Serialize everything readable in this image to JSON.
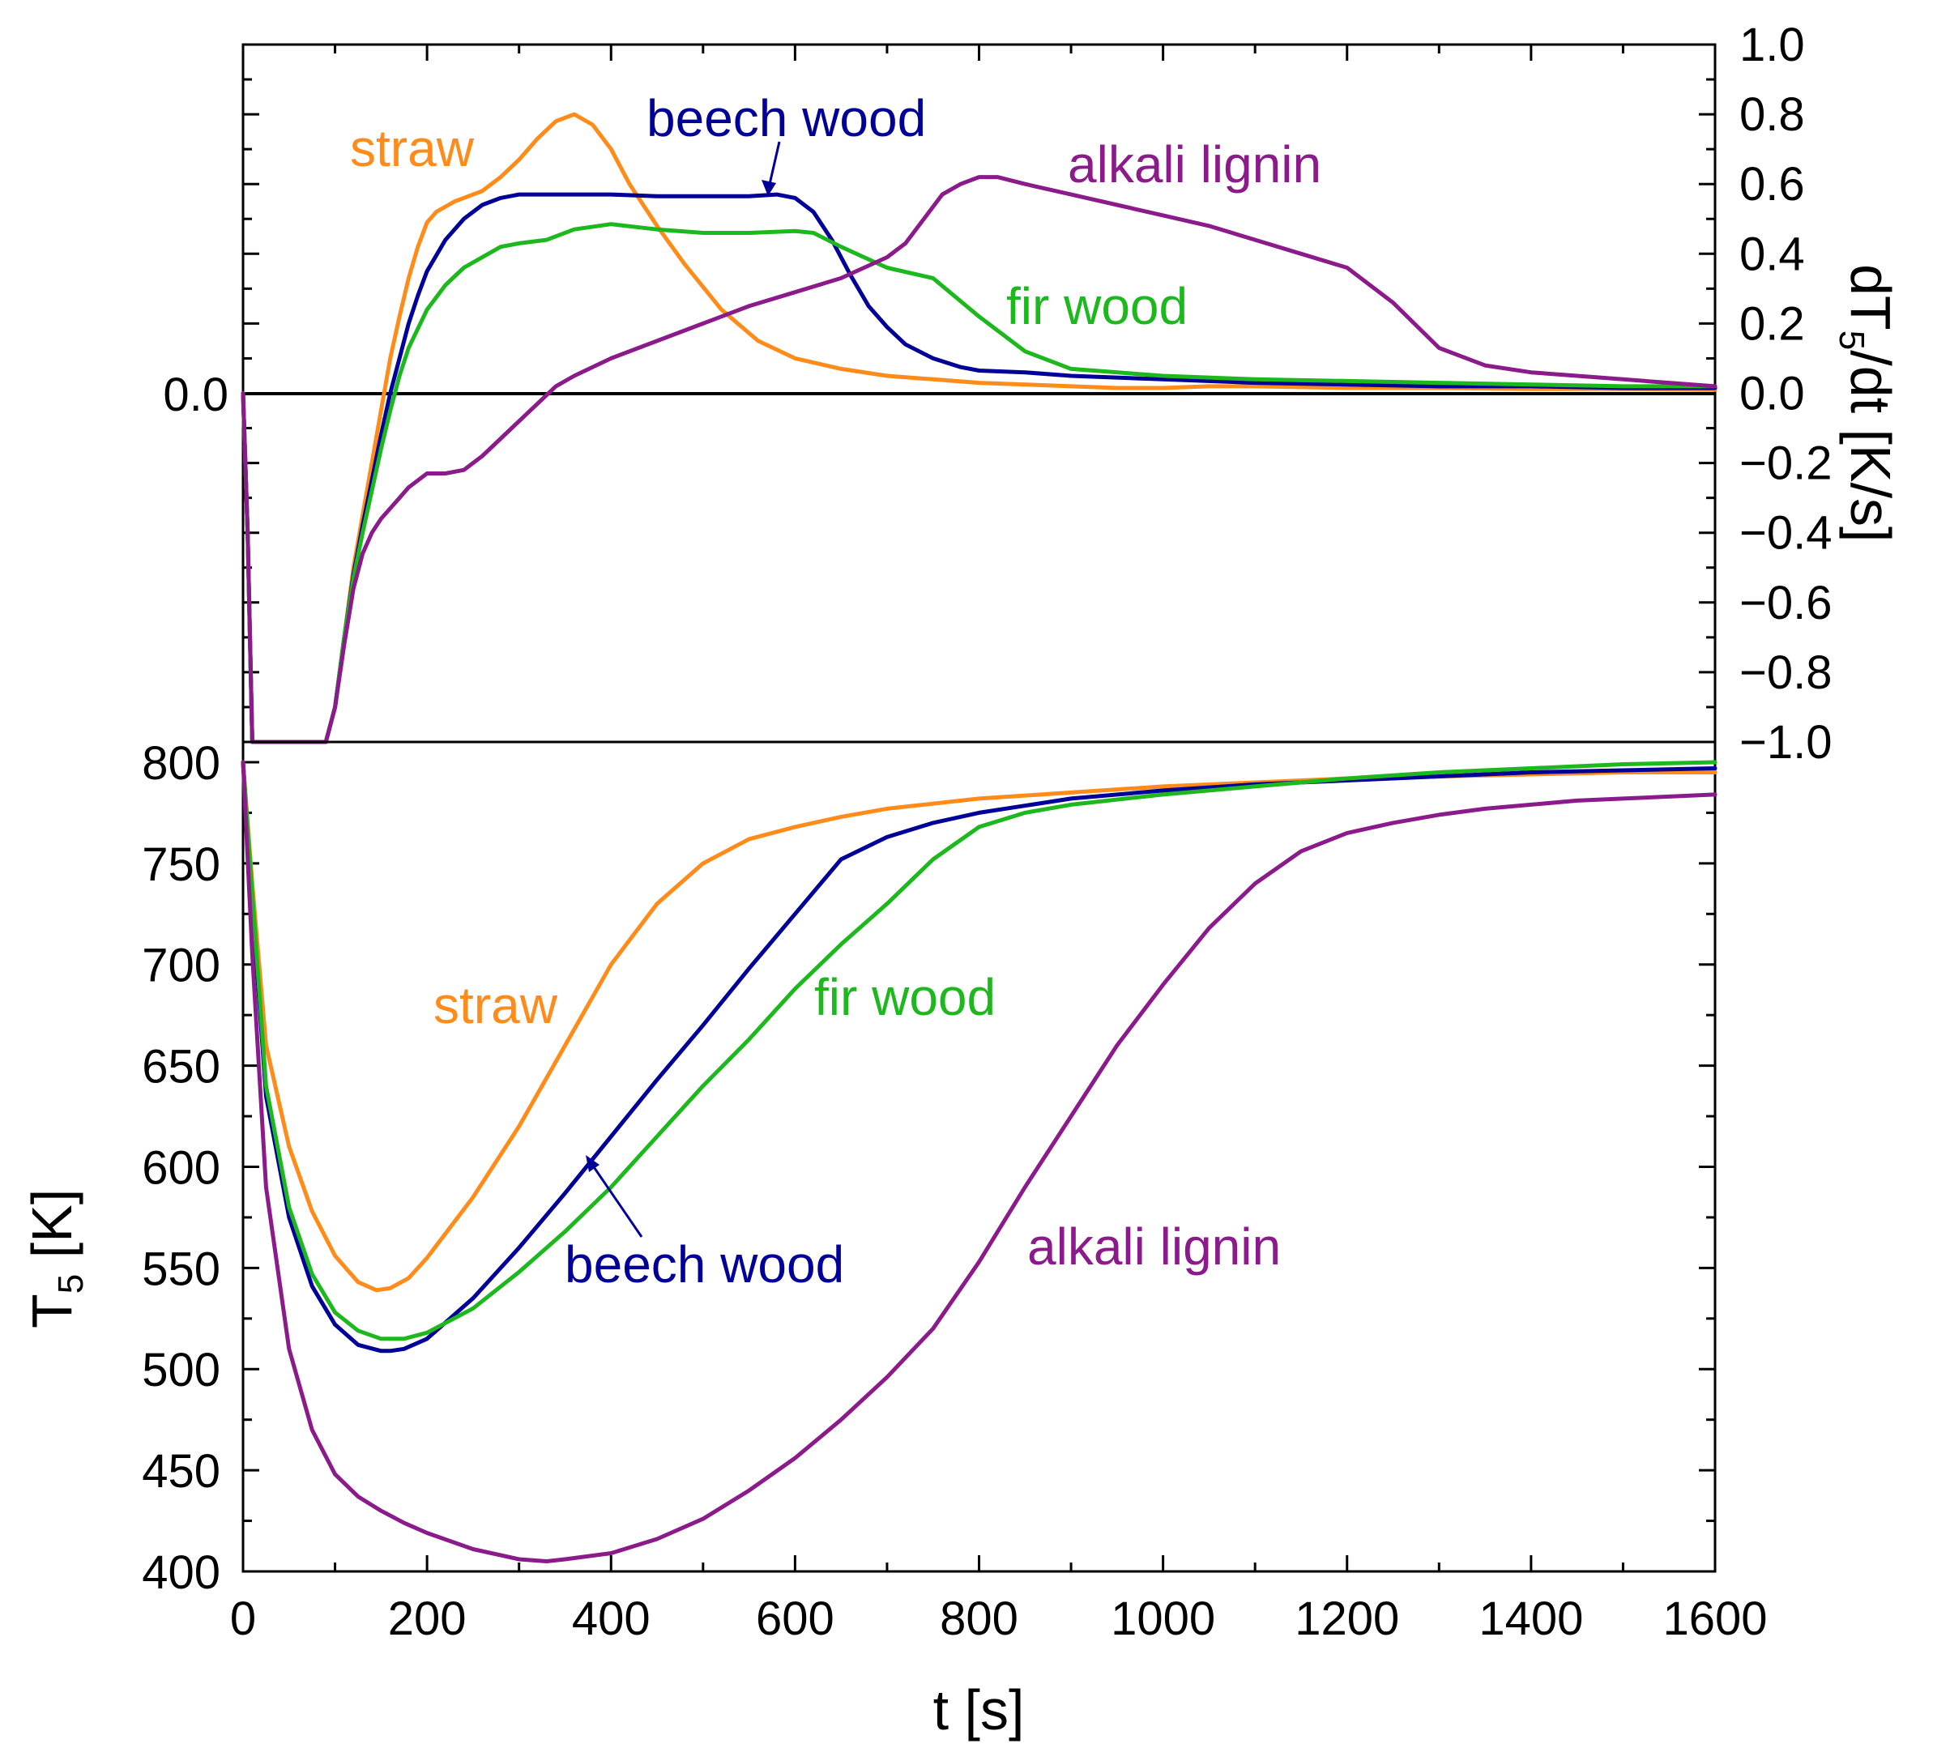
{
  "colors": {
    "straw": "#ff8c1a",
    "beech": "#000099",
    "fir": "#1db81d",
    "lignin": "#8b1a8b"
  },
  "chart_data": [
    {
      "type": "line",
      "panel": "top",
      "ylabel": "dT5/dt [K/s]",
      "ylabel_main": "dT",
      "ylabel_sub": "5",
      "ylabel_rest": "/dt [K/s]",
      "ylim": [
        -1.0,
        1.0
      ],
      "xlim": [
        0,
        1600
      ],
      "left_tick_label": "0.0",
      "right_tick_labels": [
        "1.0",
        "0.8",
        "0.6",
        "0.4",
        "0.2",
        "0.0",
        "−0.2",
        "−0.4",
        "−0.6",
        "−0.8",
        "−1.0"
      ],
      "annotations": {
        "straw": "straw",
        "beech": "beech wood",
        "fir": "fir wood",
        "lignin": "alkali lignin"
      },
      "series": [
        {
          "name": "straw",
          "color_key": "straw",
          "x": [
            0,
            5,
            10,
            50,
            90,
            100,
            110,
            120,
            130,
            140,
            150,
            160,
            170,
            180,
            190,
            200,
            210,
            230,
            260,
            280,
            300,
            320,
            340,
            360,
            380,
            400,
            420,
            450,
            480,
            520,
            560,
            600,
            650,
            700,
            750,
            800,
            850,
            900,
            950,
            1000,
            1050,
            1100,
            1200,
            1300,
            1400,
            1500,
            1600
          ],
          "y": [
            0.0,
            -0.4,
            -1.0,
            -1.0,
            -1.0,
            -0.9,
            -0.7,
            -0.5,
            -0.35,
            -0.2,
            -0.05,
            0.1,
            0.22,
            0.33,
            0.42,
            0.49,
            0.52,
            0.55,
            0.58,
            0.62,
            0.67,
            0.73,
            0.78,
            0.8,
            0.77,
            0.7,
            0.6,
            0.48,
            0.37,
            0.24,
            0.15,
            0.1,
            0.07,
            0.05,
            0.04,
            0.03,
            0.025,
            0.02,
            0.015,
            0.015,
            0.02,
            0.02,
            0.015,
            0.015,
            0.012,
            0.012,
            0.01
          ]
        },
        {
          "name": "beech wood",
          "color_key": "beech",
          "x": [
            0,
            5,
            10,
            50,
            90,
            100,
            110,
            120,
            130,
            140,
            150,
            160,
            170,
            180,
            190,
            200,
            220,
            240,
            260,
            280,
            300,
            350,
            400,
            450,
            500,
            550,
            580,
            600,
            620,
            640,
            660,
            680,
            700,
            720,
            750,
            780,
            800,
            850,
            900,
            1000,
            1100,
            1200,
            1300,
            1400,
            1500,
            1600
          ],
          "y": [
            0.0,
            -0.4,
            -1.0,
            -1.0,
            -1.0,
            -0.9,
            -0.7,
            -0.52,
            -0.38,
            -0.25,
            -0.12,
            0.0,
            0.1,
            0.2,
            0.28,
            0.35,
            0.44,
            0.5,
            0.54,
            0.56,
            0.57,
            0.57,
            0.57,
            0.565,
            0.565,
            0.565,
            0.57,
            0.56,
            0.52,
            0.44,
            0.34,
            0.25,
            0.19,
            0.14,
            0.1,
            0.075,
            0.065,
            0.06,
            0.05,
            0.04,
            0.03,
            0.025,
            0.02,
            0.02,
            0.015,
            0.015
          ]
        },
        {
          "name": "fir wood",
          "color_key": "fir",
          "x": [
            0,
            5,
            10,
            50,
            90,
            100,
            110,
            120,
            130,
            140,
            150,
            160,
            170,
            180,
            200,
            220,
            240,
            260,
            280,
            300,
            330,
            360,
            400,
            450,
            500,
            550,
            600,
            620,
            650,
            700,
            750,
            800,
            850,
            900,
            1000,
            1100,
            1200,
            1300,
            1400,
            1500,
            1600
          ],
          "y": [
            0.0,
            -0.4,
            -1.0,
            -1.0,
            -1.0,
            -0.9,
            -0.7,
            -0.53,
            -0.4,
            -0.28,
            -0.16,
            -0.05,
            0.05,
            0.13,
            0.24,
            0.31,
            0.36,
            0.39,
            0.42,
            0.43,
            0.44,
            0.47,
            0.485,
            0.47,
            0.46,
            0.46,
            0.465,
            0.46,
            0.42,
            0.36,
            0.33,
            0.22,
            0.12,
            0.07,
            0.05,
            0.04,
            0.035,
            0.03,
            0.025,
            0.02,
            0.02
          ]
        },
        {
          "name": "alkali lignin",
          "color_key": "lignin",
          "x": [
            0,
            5,
            10,
            50,
            90,
            100,
            110,
            120,
            130,
            140,
            150,
            160,
            170,
            180,
            200,
            220,
            240,
            260,
            280,
            300,
            320,
            340,
            360,
            400,
            450,
            500,
            550,
            600,
            650,
            700,
            720,
            740,
            760,
            780,
            800,
            820,
            850,
            900,
            950,
            1000,
            1050,
            1100,
            1150,
            1200,
            1250,
            1300,
            1350,
            1400,
            1450,
            1500,
            1550,
            1600
          ],
          "y": [
            0.0,
            -0.4,
            -1.0,
            -1.0,
            -1.0,
            -0.9,
            -0.72,
            -0.56,
            -0.46,
            -0.4,
            -0.36,
            -0.33,
            -0.3,
            -0.27,
            -0.23,
            -0.23,
            -0.22,
            -0.18,
            -0.13,
            -0.08,
            -0.03,
            0.02,
            0.05,
            0.1,
            0.15,
            0.2,
            0.25,
            0.29,
            0.33,
            0.39,
            0.43,
            0.5,
            0.57,
            0.6,
            0.62,
            0.62,
            0.6,
            0.57,
            0.54,
            0.51,
            0.48,
            0.44,
            0.4,
            0.36,
            0.26,
            0.13,
            0.08,
            0.06,
            0.05,
            0.04,
            0.03,
            0.02
          ]
        }
      ]
    },
    {
      "type": "line",
      "panel": "bottom",
      "title": "",
      "xlabel": "t [s]",
      "ylabel": "T5 [K]",
      "ylabel_main": "T",
      "ylabel_sub": "5",
      "ylabel_rest": " [K]",
      "xlim": [
        0,
        1600
      ],
      "ylim": [
        400,
        810
      ],
      "xticks": [
        0,
        200,
        400,
        600,
        800,
        1000,
        1200,
        1400,
        1600
      ],
      "xtick_labels": [
        "0",
        "200",
        "400",
        "600",
        "800",
        "1000",
        "1200",
        "1400",
        "1600"
      ],
      "yticks": [
        400,
        450,
        500,
        550,
        600,
        650,
        700,
        750,
        800
      ],
      "ytick_labels": [
        "400",
        "450",
        "500",
        "550",
        "600",
        "650",
        "700",
        "750",
        "800"
      ],
      "annotations": {
        "straw": "straw",
        "beech": "beech wood",
        "fir": "fir wood",
        "lignin": "alkali lignin"
      },
      "series": [
        {
          "name": "straw",
          "color_key": "straw",
          "x": [
            0,
            10,
            25,
            50,
            75,
            100,
            125,
            145,
            160,
            180,
            200,
            250,
            300,
            350,
            400,
            450,
            500,
            550,
            600,
            650,
            700,
            800,
            900,
            1000,
            1100,
            1200,
            1300,
            1400,
            1500,
            1600
          ],
          "y": [
            800,
            740,
            660,
            610,
            578,
            556,
            543,
            539,
            540,
            545,
            555,
            585,
            620,
            660,
            700,
            730,
            750,
            762,
            768,
            773,
            777,
            782,
            785,
            788,
            790,
            792,
            793,
            794,
            795,
            795
          ]
        },
        {
          "name": "beech wood",
          "color_key": "beech",
          "x": [
            0,
            10,
            25,
            50,
            75,
            100,
            125,
            150,
            160,
            175,
            200,
            250,
            300,
            350,
            400,
            450,
            500,
            550,
            600,
            650,
            700,
            750,
            800,
            900,
            1000,
            1100,
            1200,
            1300,
            1400,
            1500,
            1600
          ],
          "y": [
            800,
            730,
            635,
            575,
            541,
            522,
            512,
            509,
            509,
            510,
            515,
            535,
            560,
            587,
            615,
            643,
            670,
            698,
            725,
            752,
            763,
            770,
            775,
            782,
            786,
            789,
            791,
            793,
            795,
            796,
            797
          ]
        },
        {
          "name": "fir wood",
          "color_key": "fir",
          "x": [
            0,
            10,
            25,
            50,
            75,
            100,
            125,
            150,
            175,
            200,
            250,
            300,
            350,
            400,
            450,
            500,
            550,
            600,
            650,
            700,
            750,
            800,
            850,
            900,
            1000,
            1100,
            1200,
            1300,
            1400,
            1500,
            1600
          ],
          "y": [
            800,
            735,
            640,
            580,
            547,
            528,
            519,
            515,
            515,
            518,
            530,
            548,
            568,
            590,
            615,
            640,
            663,
            688,
            710,
            730,
            752,
            768,
            775,
            779,
            784,
            788,
            792,
            795,
            797,
            799,
            800
          ]
        },
        {
          "name": "alkali lignin",
          "color_key": "lignin",
          "x": [
            0,
            10,
            25,
            50,
            75,
            100,
            125,
            150,
            175,
            200,
            250,
            300,
            330,
            350,
            400,
            450,
            500,
            550,
            600,
            650,
            700,
            750,
            800,
            850,
            900,
            950,
            1000,
            1050,
            1100,
            1150,
            1200,
            1250,
            1300,
            1350,
            1400,
            1450,
            1500,
            1550,
            1600
          ],
          "y": [
            800,
            705,
            590,
            510,
            470,
            448,
            437,
            430,
            424,
            419,
            411,
            406,
            405,
            406,
            409,
            416,
            426,
            440,
            456,
            475,
            496,
            520,
            553,
            590,
            625,
            660,
            690,
            718,
            740,
            756,
            765,
            770,
            774,
            777,
            779,
            781,
            782,
            783,
            784
          ]
        }
      ]
    }
  ]
}
